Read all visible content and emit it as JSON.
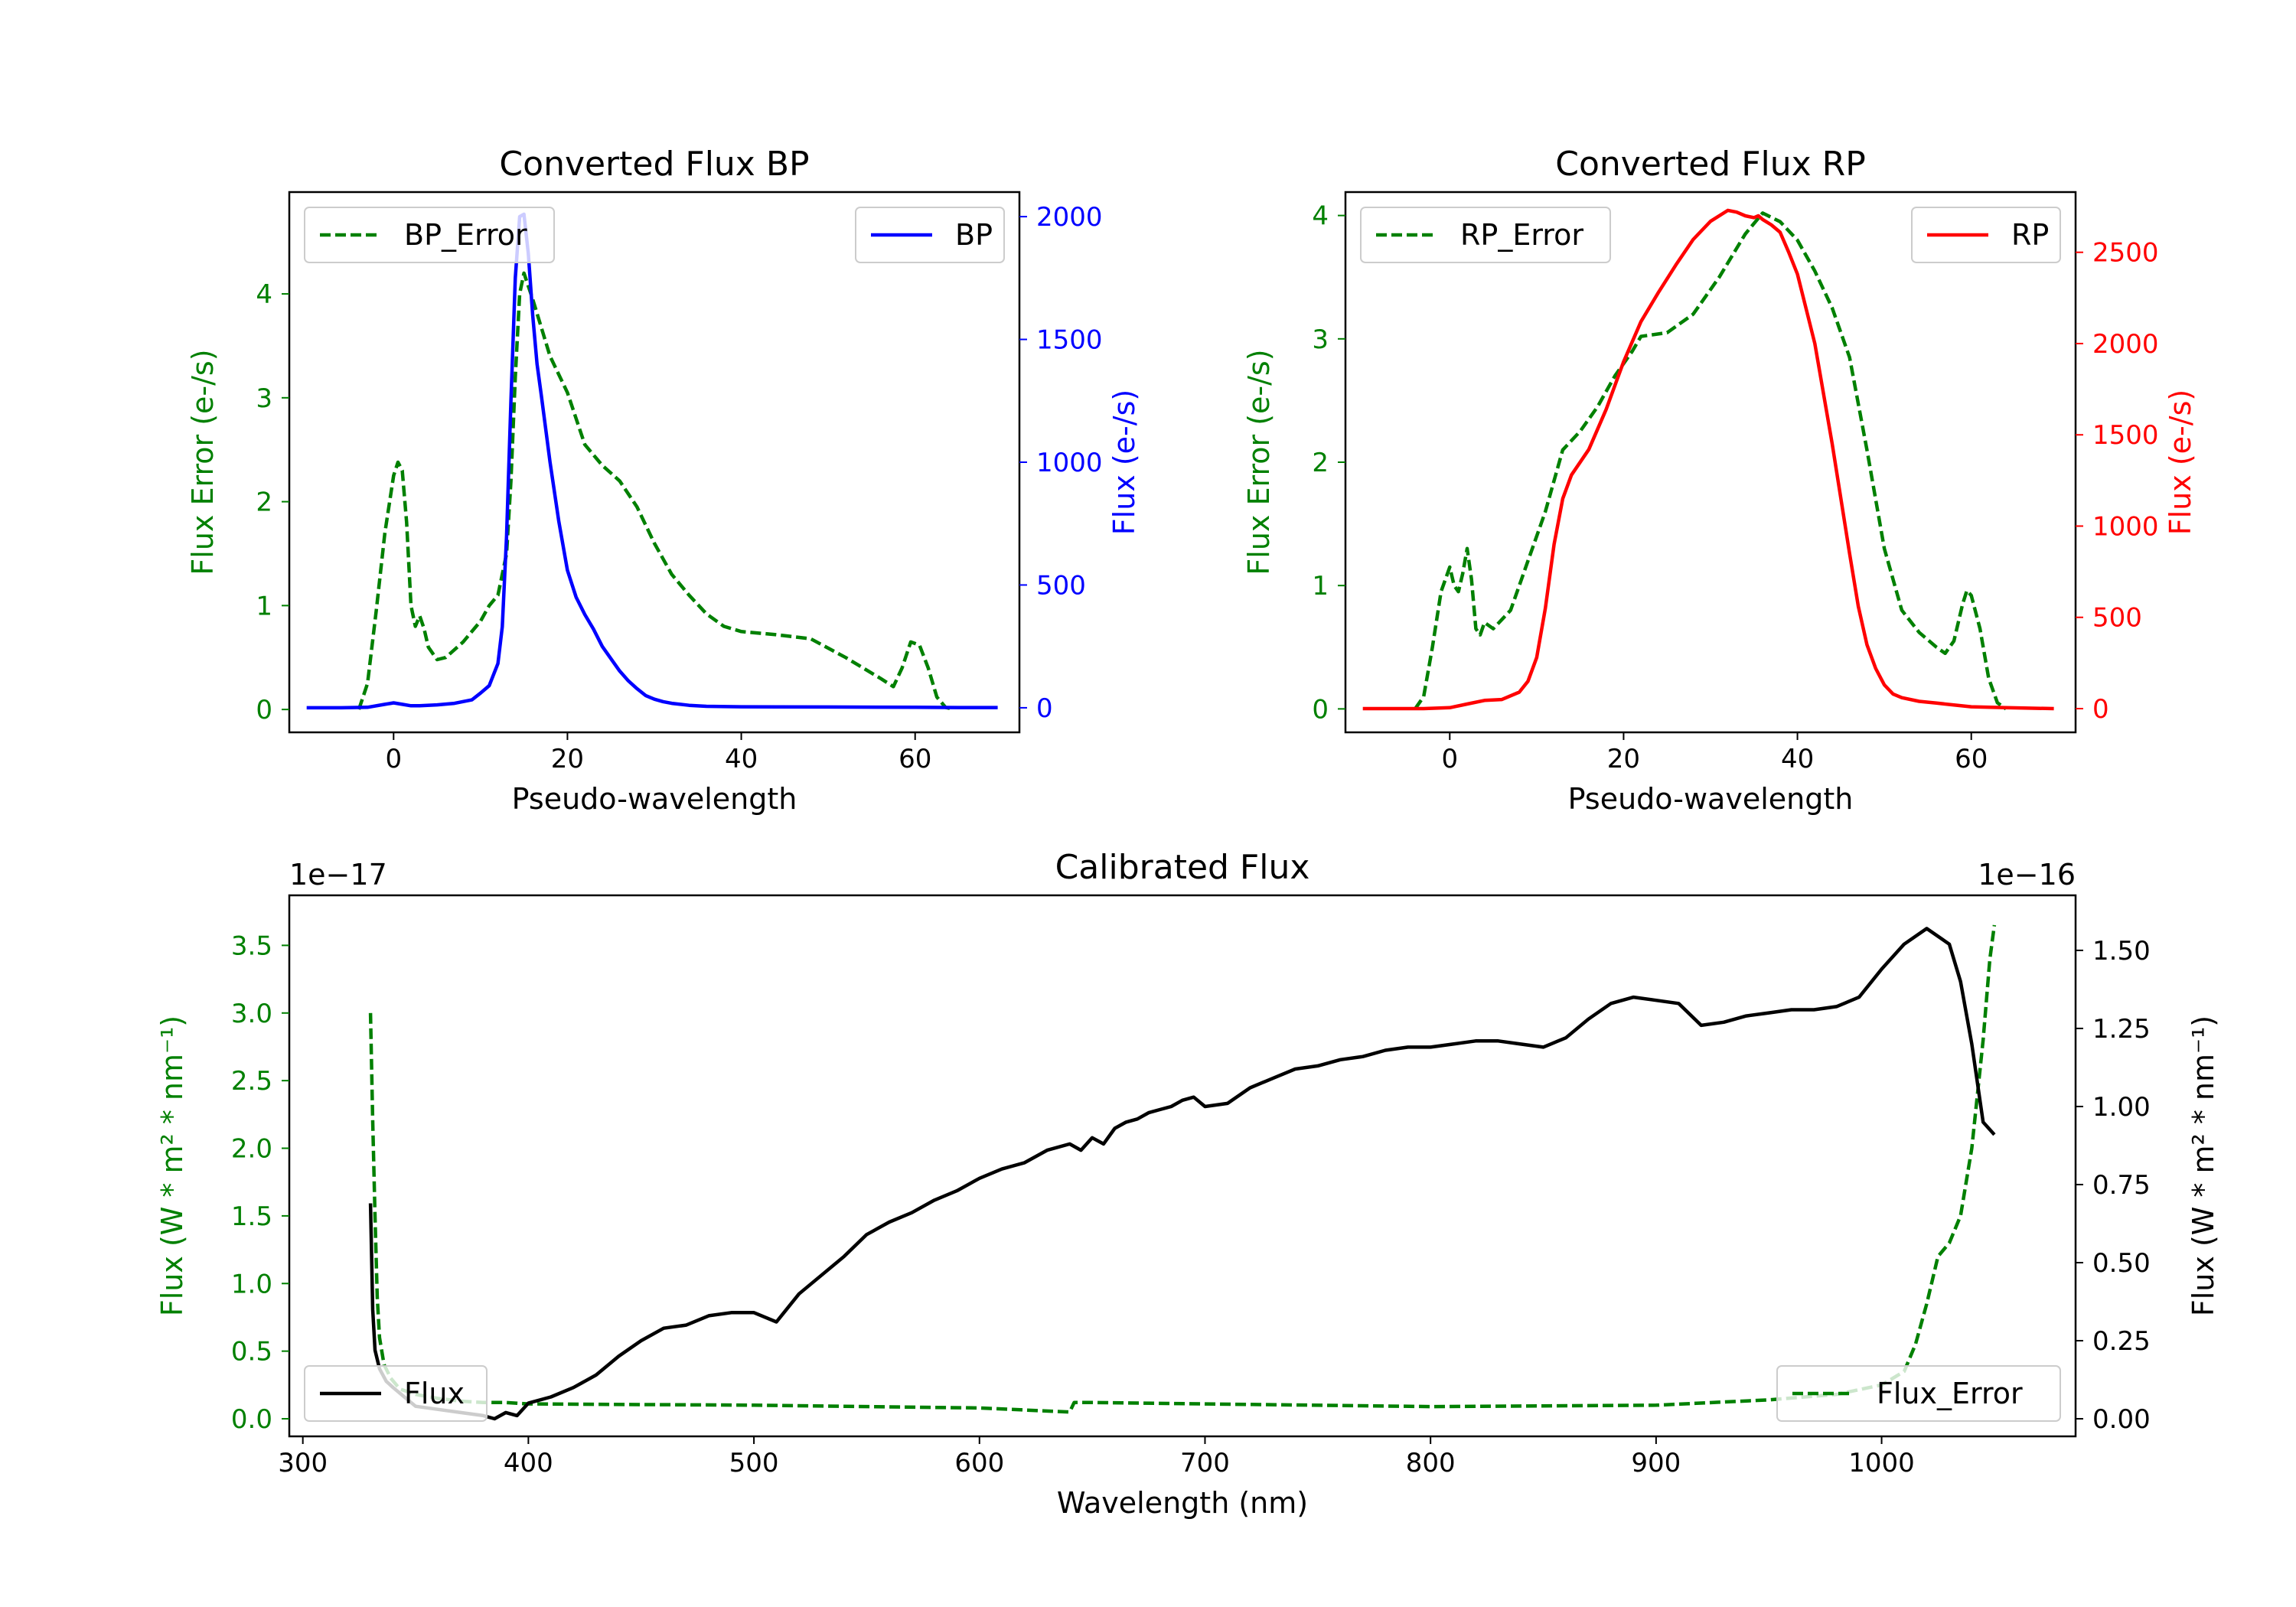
{
  "chart_data": [
    {
      "type": "line",
      "title": "Converted Flux BP",
      "xlabel": "Pseudo-wavelength",
      "ylabel_left": "Flux Error (e-/s)",
      "ylabel_right": "Flux (e-/s)",
      "xlim": [
        -12,
        72
      ],
      "ylim_left": [
        -0.22,
        4.98
      ],
      "ylim_right": [
        -100,
        2100
      ],
      "xticks": [
        "0",
        "20",
        "40",
        "60"
      ],
      "yticks_left": [
        "0",
        "1",
        "2",
        "3",
        "4"
      ],
      "yticks_right": [
        "0",
        "500",
        "1000",
        "1500",
        "2000"
      ],
      "legend_left": "BP_Error",
      "legend_right": "BP",
      "colors": {
        "error": "#008000",
        "flux": "#0000ff",
        "right_axis": "#0000ff"
      },
      "series": [
        {
          "name": "BP_Error",
          "axis": "left",
          "style": "dashed",
          "x": [
            -4,
            -3,
            -2,
            -1,
            0,
            0.5,
            1,
            1.5,
            2,
            2.5,
            3,
            3.5,
            4,
            5,
            6,
            8,
            10,
            11,
            12,
            13,
            13.5,
            14,
            14.5,
            15,
            16,
            18,
            20,
            22,
            24,
            26,
            28,
            30,
            32,
            34,
            36,
            38,
            40,
            44,
            48,
            52,
            56,
            57.5,
            58.5,
            59.5,
            60.5,
            61.5,
            62.5,
            63.5,
            64.5
          ],
          "values": [
            0,
            0.25,
            0.95,
            1.7,
            2.25,
            2.38,
            2.3,
            1.8,
            1.0,
            0.8,
            0.9,
            0.78,
            0.6,
            0.48,
            0.5,
            0.65,
            0.85,
            1.0,
            1.1,
            1.5,
            2.2,
            3.2,
            4.0,
            4.2,
            3.95,
            3.4,
            3.05,
            2.55,
            2.35,
            2.2,
            1.95,
            1.6,
            1.3,
            1.1,
            0.92,
            0.8,
            0.75,
            0.72,
            0.68,
            0.5,
            0.3,
            0.22,
            0.4,
            0.65,
            0.62,
            0.4,
            0.12,
            0.02,
            0
          ]
        },
        {
          "name": "BP",
          "axis": "right",
          "style": "solid",
          "x": [
            -10,
            -6,
            -3,
            -1,
            0,
            1,
            2,
            3,
            5,
            7,
            9,
            10,
            11,
            12,
            12.5,
            13,
            13.5,
            14,
            14.5,
            15,
            15.5,
            16,
            16.5,
            17,
            18,
            19,
            20,
            21,
            22,
            23,
            24,
            25,
            26,
            27,
            28,
            29,
            30,
            31,
            32,
            34,
            36,
            40,
            50,
            60,
            65,
            69.5
          ],
          "values": [
            0,
            0,
            2,
            14,
            20,
            14,
            8,
            8,
            12,
            18,
            32,
            60,
            90,
            180,
            330,
            700,
            1250,
            1750,
            2000,
            2010,
            1850,
            1600,
            1400,
            1270,
            1000,
            760,
            560,
            450,
            380,
            320,
            250,
            200,
            150,
            110,
            78,
            50,
            35,
            25,
            18,
            10,
            6,
            4,
            3,
            2,
            1,
            1
          ]
        }
      ]
    },
    {
      "type": "line",
      "title": "Converted Flux RP",
      "xlabel": "Pseudo-wavelength",
      "ylabel_left": "Flux Error (e-/s)",
      "ylabel_right": "Flux (e-/s)",
      "xlim": [
        -12,
        72
      ],
      "ylim_left": [
        -0.19,
        4.19
      ],
      "ylim_right": [
        -130,
        2830
      ],
      "xticks": [
        "0",
        "20",
        "40",
        "60"
      ],
      "yticks_left": [
        "0",
        "1",
        "2",
        "3",
        "4"
      ],
      "yticks_right": [
        "0",
        "500",
        "1000",
        "1500",
        "2000",
        "2500"
      ],
      "legend_left": "RP_Error",
      "legend_right": "RP",
      "colors": {
        "error": "#008000",
        "flux": "#ff0000",
        "right_axis": "#ff0000"
      },
      "series": [
        {
          "name": "RP_Error",
          "axis": "left",
          "style": "dashed",
          "x": [
            -4,
            -3,
            -2,
            -1,
            0,
            0.5,
            1,
            1.5,
            2,
            2.5,
            3,
            3.5,
            4,
            5,
            7,
            9,
            11,
            13,
            15,
            17,
            19,
            21,
            22,
            25,
            28,
            31,
            34,
            36,
            38,
            40,
            42,
            44,
            46,
            48,
            50,
            52,
            54,
            56,
            57,
            58,
            59,
            59.5,
            60,
            61,
            62,
            63,
            64
          ],
          "values": [
            0,
            0.1,
            0.5,
            0.95,
            1.15,
            1.0,
            0.95,
            1.1,
            1.3,
            1.05,
            0.65,
            0.6,
            0.7,
            0.65,
            0.8,
            1.2,
            1.6,
            2.1,
            2.25,
            2.45,
            2.7,
            2.9,
            3.02,
            3.05,
            3.2,
            3.5,
            3.85,
            4.02,
            3.95,
            3.8,
            3.55,
            3.25,
            2.85,
            2.1,
            1.3,
            0.8,
            0.62,
            0.5,
            0.45,
            0.55,
            0.85,
            0.96,
            0.92,
            0.65,
            0.25,
            0.05,
            0
          ]
        },
        {
          "name": "RP",
          "axis": "right",
          "style": "solid",
          "x": [
            -10,
            -3,
            0,
            2,
            4,
            6,
            8,
            9,
            10,
            11,
            12,
            13,
            14,
            16,
            18,
            20,
            22,
            24,
            26,
            28,
            30,
            32,
            33,
            34,
            35,
            35.5,
            36,
            37,
            38,
            39,
            40,
            42,
            44,
            46,
            47,
            48,
            49,
            50,
            51,
            52,
            54,
            56,
            58,
            60,
            64,
            69.5
          ],
          "values": [
            0,
            0,
            5,
            25,
            45,
            50,
            90,
            150,
            280,
            550,
            900,
            1150,
            1280,
            1420,
            1640,
            1900,
            2120,
            2280,
            2430,
            2570,
            2670,
            2730,
            2720,
            2700,
            2690,
            2700,
            2680,
            2650,
            2610,
            2500,
            2380,
            2000,
            1450,
            850,
            560,
            350,
            220,
            130,
            80,
            60,
            40,
            30,
            20,
            10,
            5,
            0
          ]
        }
      ]
    },
    {
      "type": "line",
      "title": "Calibrated Flux",
      "xlabel": "Wavelength (nm)",
      "ylabel_left": "Flux (W * m² * nm⁻¹)",
      "ylabel_right": "Flux (W * m² * nm⁻¹)",
      "offset_left": "1e−17",
      "offset_right": "1e−16",
      "xlim": [
        294,
        1086
      ],
      "ylim_left": [
        -0.13,
        3.87
      ],
      "ylim_right": [
        -0.0563,
        1.6763
      ],
      "xticks": [
        "300",
        "400",
        "500",
        "600",
        "700",
        "800",
        "900",
        "1000"
      ],
      "yticks_left": [
        "0.0",
        "0.5",
        "1.0",
        "1.5",
        "2.0",
        "2.5",
        "3.0",
        "3.5"
      ],
      "yticks_right": [
        "0.00",
        "0.25",
        "0.50",
        "0.75",
        "1.00",
        "1.25",
        "1.50"
      ],
      "legend_left": "Flux",
      "legend_right": "Flux_Error",
      "colors": {
        "error": "#008000",
        "flux": "#000000",
        "right_axis": "#000000"
      },
      "series": [
        {
          "name": "Flux_Error",
          "axis": "left",
          "style": "dashed",
          "x": [
            330,
            331,
            332,
            333,
            334,
            336,
            339,
            343,
            350,
            360,
            370,
            380,
            390,
            400,
            500,
            600,
            640,
            642,
            650,
            700,
            800,
            900,
            950,
            980,
            1000,
            1010,
            1015,
            1020,
            1025,
            1030,
            1035,
            1040,
            1045,
            1048,
            1050
          ],
          "values": [
            3.0,
            2.2,
            1.5,
            0.9,
            0.6,
            0.4,
            0.3,
            0.22,
            0.18,
            0.15,
            0.13,
            0.12,
            0.12,
            0.11,
            0.1,
            0.08,
            0.05,
            0.12,
            0.12,
            0.11,
            0.09,
            0.1,
            0.14,
            0.18,
            0.25,
            0.35,
            0.55,
            0.85,
            1.2,
            1.3,
            1.5,
            2.0,
            2.8,
            3.4,
            3.65
          ]
        },
        {
          "name": "Flux",
          "axis": "right",
          "style": "solid",
          "x": [
            330,
            331,
            332,
            334,
            337,
            340,
            345,
            350,
            360,
            370,
            380,
            385,
            390,
            395,
            400,
            410,
            420,
            430,
            440,
            450,
            460,
            470,
            480,
            490,
            500,
            510,
            520,
            530,
            540,
            550,
            560,
            570,
            580,
            590,
            600,
            610,
            620,
            630,
            640,
            645,
            650,
            655,
            660,
            665,
            670,
            675,
            680,
            685,
            690,
            695,
            700,
            710,
            720,
            730,
            740,
            750,
            760,
            770,
            780,
            790,
            800,
            810,
            820,
            830,
            840,
            850,
            860,
            870,
            880,
            890,
            900,
            910,
            920,
            930,
            940,
            950,
            960,
            970,
            980,
            990,
            1000,
            1010,
            1020,
            1030,
            1035,
            1040,
            1045,
            1050
          ],
          "values": [
            0.69,
            0.35,
            0.22,
            0.16,
            0.12,
            0.1,
            0.07,
            0.04,
            0.03,
            0.02,
            0.01,
            0.0,
            0.02,
            0.01,
            0.05,
            0.07,
            0.1,
            0.14,
            0.2,
            0.25,
            0.29,
            0.3,
            0.33,
            0.34,
            0.34,
            0.31,
            0.4,
            0.46,
            0.52,
            0.59,
            0.63,
            0.66,
            0.7,
            0.73,
            0.77,
            0.8,
            0.82,
            0.86,
            0.88,
            0.86,
            0.9,
            0.88,
            0.93,
            0.95,
            0.96,
            0.98,
            0.99,
            1.0,
            1.02,
            1.03,
            1.0,
            1.01,
            1.06,
            1.09,
            1.12,
            1.13,
            1.15,
            1.16,
            1.18,
            1.19,
            1.19,
            1.2,
            1.21,
            1.21,
            1.2,
            1.19,
            1.22,
            1.28,
            1.33,
            1.35,
            1.34,
            1.33,
            1.26,
            1.27,
            1.29,
            1.3,
            1.31,
            1.31,
            1.32,
            1.35,
            1.44,
            1.52,
            1.57,
            1.52,
            1.4,
            1.2,
            0.95,
            0.91
          ]
        }
      ]
    }
  ]
}
